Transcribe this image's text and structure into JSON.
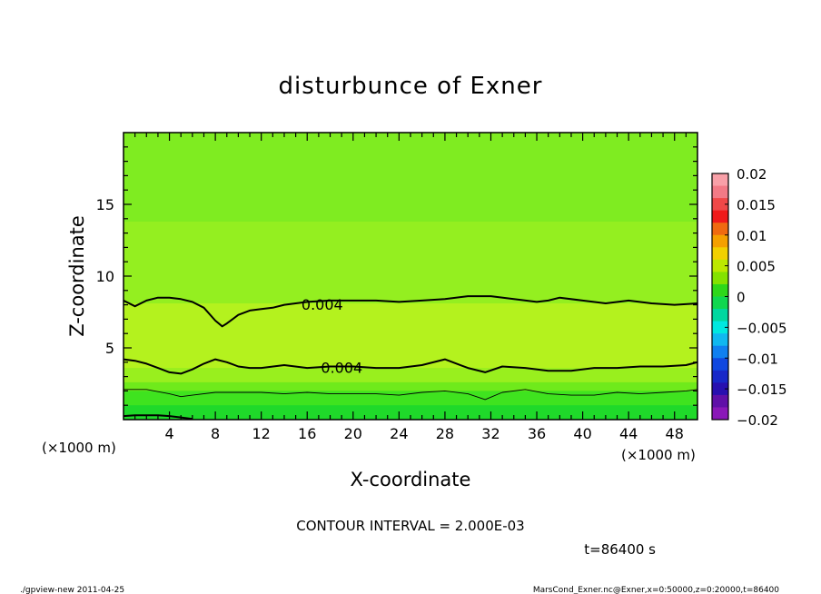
{
  "chart_data": {
    "type": "heatmap",
    "title": "disturbunce of Exner",
    "xlabel": "X-coordinate",
    "ylabel": "Z-coordinate",
    "x_unit": "(×1000 m)",
    "y_unit": "(×1000 m)",
    "xlim": [
      0,
      50
    ],
    "ylim": [
      0,
      20
    ],
    "x_ticks": [
      4,
      8,
      12,
      16,
      20,
      24,
      28,
      32,
      36,
      40,
      44,
      48
    ],
    "y_ticks": [
      5,
      10,
      15
    ],
    "contour_interval_text": "CONTOUR INTERVAL = 2.000E-03",
    "time_text": "t=86400 s",
    "contour_labels": [
      {
        "text": "0.004",
        "x": 15.5,
        "z": 8.1
      },
      {
        "text": "0.004",
        "x": 17.2,
        "z": 3.7
      }
    ],
    "contours": [
      {
        "level": 0.004,
        "emphasis": "major",
        "x": [
          0,
          1,
          2,
          3,
          4,
          5,
          6,
          7,
          8,
          8.6,
          9,
          10,
          11,
          12,
          13,
          14,
          16,
          18,
          20,
          22,
          24,
          26,
          28,
          30,
          32,
          34,
          36,
          37,
          38,
          40,
          42,
          44,
          46,
          48,
          50
        ],
        "z": [
          8.3,
          7.9,
          8.3,
          8.5,
          8.5,
          8.4,
          8.2,
          7.8,
          6.9,
          6.5,
          6.7,
          7.3,
          7.6,
          7.7,
          7.8,
          8.0,
          8.2,
          8.3,
          8.3,
          8.3,
          8.2,
          8.3,
          8.4,
          8.6,
          8.6,
          8.4,
          8.2,
          8.3,
          8.5,
          8.3,
          8.1,
          8.3,
          8.1,
          8.0,
          8.1
        ]
      },
      {
        "level": 0.004,
        "emphasis": "major",
        "x": [
          0,
          1,
          2,
          3,
          4,
          5,
          6,
          7,
          8,
          9,
          10,
          11,
          12,
          14,
          16,
          18,
          20,
          22,
          24,
          26,
          28,
          30,
          31.5,
          33,
          35,
          37,
          39,
          41,
          43,
          45,
          47,
          49,
          50
        ],
        "z": [
          4.2,
          4.1,
          3.9,
          3.6,
          3.3,
          3.2,
          3.5,
          3.9,
          4.2,
          4.0,
          3.7,
          3.6,
          3.6,
          3.8,
          3.6,
          3.7,
          3.7,
          3.6,
          3.6,
          3.8,
          4.2,
          3.6,
          3.3,
          3.7,
          3.6,
          3.4,
          3.4,
          3.6,
          3.6,
          3.7,
          3.7,
          3.8,
          4.0
        ]
      },
      {
        "level": 0.002,
        "emphasis": "minor",
        "x": [
          0,
          2,
          4,
          5,
          6,
          8,
          10,
          12,
          14,
          16,
          18,
          20,
          22,
          24,
          26,
          28,
          30,
          31.5,
          33,
          35,
          37,
          39,
          41,
          43,
          45,
          47,
          49,
          50
        ],
        "z": [
          2.1,
          2.1,
          1.8,
          1.6,
          1.7,
          1.9,
          1.9,
          1.9,
          1.8,
          1.9,
          1.8,
          1.8,
          1.8,
          1.7,
          1.9,
          2.0,
          1.8,
          1.4,
          1.9,
          2.1,
          1.8,
          1.7,
          1.7,
          1.9,
          1.8,
          1.9,
          2.0,
          2.1
        ]
      },
      {
        "level": 0.0,
        "emphasis": "major",
        "x": [
          0,
          1,
          2,
          3,
          4,
          5,
          6
        ],
        "z": [
          0.25,
          0.3,
          0.3,
          0.3,
          0.25,
          0.15,
          0.05
        ]
      }
    ],
    "fill_bands": [
      {
        "z_top": 20.0,
        "color": "#7fec21"
      },
      {
        "z_top": 13.8,
        "color": "#94ef20"
      },
      {
        "z_top": 8.1,
        "color": "#b4f21e"
      },
      {
        "z_top": 3.6,
        "color": "#99ef1e"
      },
      {
        "z_top": 2.6,
        "color": "#6fea1b"
      },
      {
        "z_top": 2.0,
        "color": "#3fe31f"
      },
      {
        "z_top": 1.0,
        "color": "#1fd92a"
      }
    ],
    "colorbar": {
      "tick_labels": [
        "0.02",
        "0.015",
        "0.01",
        "0.005",
        "0",
        "−0.005",
        "−0.01",
        "−0.015",
        "−0.02"
      ],
      "values": [
        0.02,
        0.015,
        0.01,
        0.005,
        0,
        -0.005,
        -0.01,
        -0.015,
        -0.02
      ],
      "colors": [
        "#f8a0a8",
        "#f27a86",
        "#f04848",
        "#f01a1a",
        "#f06a10",
        "#f5a000",
        "#f2d000",
        "#bce800",
        "#84e200",
        "#2ed81a",
        "#10d850",
        "#00d8a0",
        "#00e8e0",
        "#10b8f0",
        "#1080f0",
        "#1048e0",
        "#1828c8",
        "#2810b0",
        "#6010a8",
        "#8a18b8"
      ]
    }
  },
  "footer": {
    "left": "./gpview-new   2011-04-25",
    "right": "MarsCond_Exner.nc@Exner,x=0:50000,z=0:20000,t=86400"
  }
}
